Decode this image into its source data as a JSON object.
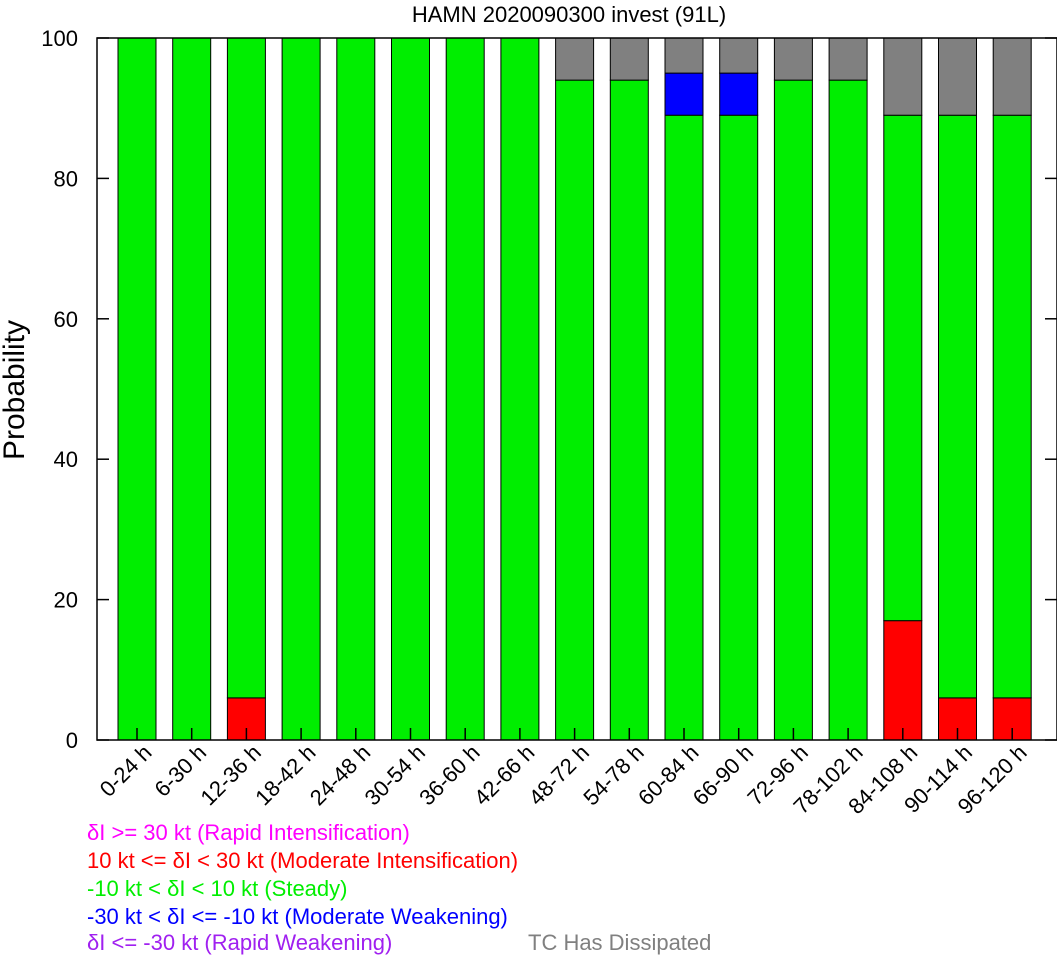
{
  "chart_data": {
    "type": "bar",
    "stacked": true,
    "title": "HAMN 2020090300 invest (91L)",
    "ylabel": "Probability",
    "xlabel": "",
    "ylim": [
      0,
      100
    ],
    "yticks": [
      "0",
      "20",
      "40",
      "60",
      "80",
      "100"
    ],
    "categories": [
      "0-24 h",
      "6-30 h",
      "12-36 h",
      "18-42 h",
      "24-48 h",
      "30-54 h",
      "36-60 h",
      "42-66 h",
      "48-72 h",
      "54-78 h",
      "60-84 h",
      "66-90 h",
      "72-96 h",
      "78-102 h",
      "84-108 h",
      "90-114 h",
      "96-120 h"
    ],
    "series": [
      {
        "name": "Rapid Intensification",
        "color": "#ff00ff",
        "values": [
          0,
          0,
          0,
          0,
          0,
          0,
          0,
          0,
          0,
          0,
          0,
          0,
          0,
          0,
          0,
          0,
          0
        ]
      },
      {
        "name": "Moderate Intensification",
        "color": "#ff0000",
        "values": [
          0,
          0,
          6,
          0,
          0,
          0,
          0,
          0,
          0,
          0,
          0,
          0,
          0,
          0,
          17,
          6,
          6
        ]
      },
      {
        "name": "Steady",
        "color": "#00ee00",
        "values": [
          100,
          100,
          94,
          100,
          100,
          100,
          100,
          100,
          94,
          94,
          89,
          89,
          94,
          94,
          72,
          83,
          83
        ]
      },
      {
        "name": "Moderate Weakening",
        "color": "#0000ff",
        "values": [
          0,
          0,
          0,
          0,
          0,
          0,
          0,
          0,
          0,
          0,
          6,
          6,
          0,
          0,
          0,
          0,
          0
        ]
      },
      {
        "name": "Rapid Weakening",
        "color": "#a020f0",
        "values": [
          0,
          0,
          0,
          0,
          0,
          0,
          0,
          0,
          0,
          0,
          0,
          0,
          0,
          0,
          0,
          0,
          0
        ]
      },
      {
        "name": "TC Has Dissipated",
        "color": "#808080",
        "values": [
          0,
          0,
          0,
          0,
          0,
          0,
          0,
          0,
          6,
          6,
          5,
          5,
          6,
          6,
          11,
          11,
          11
        ]
      }
    ],
    "grid": false,
    "legend_position": "bottom-left"
  },
  "legend": {
    "ri": {
      "text": "δI >= 30 kt (Rapid Intensification)",
      "color": "#ff00ff"
    },
    "mi": {
      "text": "10 kt <= δI < 30 kt (Moderate Intensification)",
      "color": "#ff0000"
    },
    "steady": {
      "text": "-10 kt < δI < 10 kt (Steady)",
      "color": "#00ee00"
    },
    "mw": {
      "text": "-30 kt < δI <= -10 kt (Moderate Weakening)",
      "color": "#0000ff"
    },
    "rw": {
      "text": "δI <= -30 kt (Rapid Weakening)",
      "color": "#a020f0"
    },
    "dissipated": {
      "text": "TC Has Dissipated",
      "color": "#808080"
    }
  }
}
